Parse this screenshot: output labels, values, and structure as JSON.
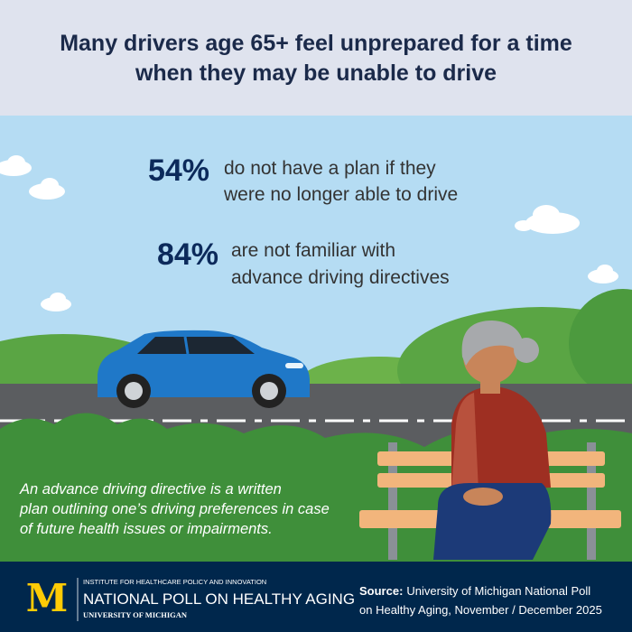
{
  "title": {
    "lines": [
      "Many drivers age 65+ feel unprepared for a time",
      "when they may be unable to drive"
    ]
  },
  "stats": [
    {
      "value": "54%",
      "lines": [
        "do not have a plan if they",
        "were no longer able to drive"
      ]
    },
    {
      "value": "84%",
      "lines": [
        "are not familiar with",
        "advance driving directives"
      ]
    }
  ],
  "definition": {
    "lines": [
      "An advance driving directive is a written",
      "plan outlining one’s driving preferences in case",
      "of future health issues or impairments."
    ]
  },
  "footer": {
    "logo": "M",
    "institute": "INSTITUTE FOR HEALTHCARE POLICY AND INNOVATION",
    "poll": "NATIONAL POLL ON HEALTHY AGING",
    "university": "UNIVERSITY OF MICHIGAN",
    "source_label": "Source:",
    "source_lines": [
      "University of Michigan National Poll",
      "on Healthy Aging, November / December 2025"
    ]
  }
}
